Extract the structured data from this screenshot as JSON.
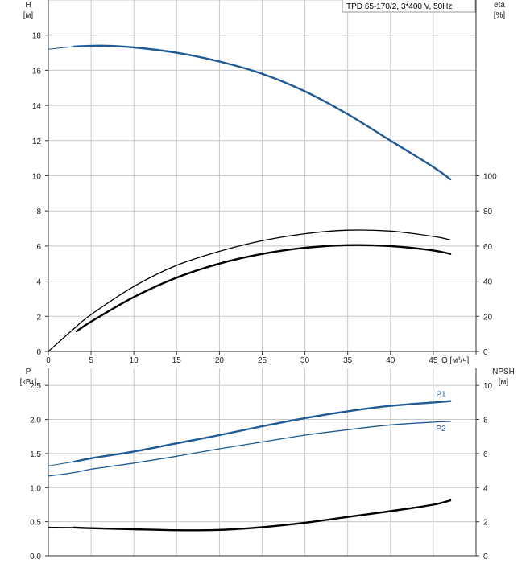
{
  "chart_data": [
    {
      "type": "line",
      "title": "TPD 65-170/2, 3*400 V, 50Hz",
      "y_left_label": [
        "H",
        "[м]"
      ],
      "y_right_label": [
        "eta",
        "[%]"
      ],
      "x_label": "Q [м³/ч]",
      "x_ticks": [
        "0",
        "5",
        "10",
        "15",
        "20",
        "25",
        "30",
        "35",
        "40",
        "45"
      ],
      "y_left_ticks": [
        "0",
        "2",
        "4",
        "6",
        "8",
        "10",
        "12",
        "14",
        "16",
        "18"
      ],
      "y_right_ticks": [
        "0",
        "20",
        "40",
        "60",
        "80",
        "100"
      ],
      "xlim": [
        0,
        50
      ],
      "ylim_left": [
        0,
        20
      ],
      "ylim_right": [
        0,
        200
      ],
      "grid": true,
      "colors": {
        "head": "#1f5a94",
        "eta": "#000000",
        "grid": "#c8c8c8"
      },
      "series": [
        {
          "axis": "left",
          "x": [
            0,
            3,
            6,
            10,
            15,
            20,
            25,
            30,
            35,
            40,
            45,
            47
          ],
          "y": [
            17.2,
            17.35,
            17.4,
            17.3,
            17.0,
            16.5,
            15.8,
            14.8,
            13.5,
            12.0,
            10.5,
            9.8
          ]
        },
        {
          "axis": "right",
          "x": [
            0,
            3,
            5,
            10,
            15,
            20,
            25,
            30,
            35,
            40,
            45,
            47
          ],
          "y": [
            0,
            13,
            21,
            37,
            49,
            57,
            63,
            67,
            69,
            68.5,
            65.5,
            63.5
          ]
        },
        {
          "axis": "right",
          "x": [
            3.3,
            5,
            10,
            15,
            20,
            25,
            30,
            35,
            40,
            45,
            47
          ],
          "y": [
            11.5,
            17,
            31,
            42,
            50,
            55.5,
            59,
            60.5,
            60,
            57.5,
            55.5
          ]
        }
      ]
    },
    {
      "type": "line",
      "y_left_label": [
        "P",
        "[кВт]"
      ],
      "y_right_label": [
        "NPSH",
        "[м]"
      ],
      "y_left_ticks": [
        "0.0",
        "0.5",
        "1.0",
        "1.5",
        "2.0",
        "2.5"
      ],
      "y_right_ticks": [
        "0",
        "2",
        "4",
        "6",
        "8",
        "10"
      ],
      "xlim": [
        0,
        50
      ],
      "ylim_left": [
        0,
        2.75
      ],
      "ylim_right": [
        0,
        11
      ],
      "grid": true,
      "colors": {
        "power": "#1f5a94",
        "npsh": "#000000"
      },
      "series": [
        {
          "name": "P1",
          "axis": "left",
          "x": [
            0,
            3,
            5,
            10,
            15,
            20,
            25,
            30,
            35,
            40,
            45,
            47
          ],
          "y": [
            1.32,
            1.38,
            1.43,
            1.53,
            1.65,
            1.77,
            1.9,
            2.02,
            2.12,
            2.2,
            2.25,
            2.27
          ]
        },
        {
          "name": "P2",
          "axis": "left",
          "x": [
            0,
            3,
            5,
            10,
            15,
            20,
            25,
            30,
            35,
            40,
            45,
            47
          ],
          "y": [
            1.17,
            1.22,
            1.27,
            1.36,
            1.46,
            1.57,
            1.67,
            1.77,
            1.85,
            1.92,
            1.96,
            1.97
          ]
        },
        {
          "axis": "right",
          "x": [
            0,
            3,
            5,
            10,
            15,
            20,
            25,
            30,
            35,
            40,
            45,
            47
          ],
          "y": [
            1.68,
            1.66,
            1.62,
            1.56,
            1.5,
            1.52,
            1.68,
            1.94,
            2.28,
            2.62,
            3.0,
            3.25
          ]
        }
      ]
    }
  ]
}
